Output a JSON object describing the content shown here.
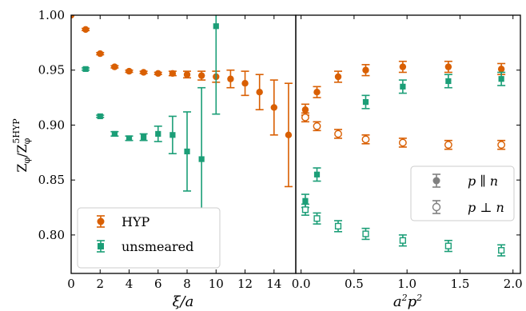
{
  "colors": {
    "hyp": "#d95f02",
    "unsmeared": "#1b9e77",
    "legend_gray": "#808080"
  },
  "chart_data": [
    {
      "type": "scatter",
      "panel": "left",
      "xlabel": "ξ/a",
      "ylabel": "Z_φ/Z_φ^5HYP",
      "xlim": [
        0,
        15.5
      ],
      "ylim": [
        0.765,
        1.0
      ],
      "x_ticks": [
        "0",
        "2",
        "4",
        "6",
        "8",
        "10",
        "12",
        "14"
      ],
      "y_ticks": [
        "0.80",
        "0.85",
        "0.90",
        "0.95",
        "1.00"
      ],
      "legend_position": "lower-left",
      "series": [
        {
          "name": "HYP",
          "marker": "circle",
          "color": "#d95f02",
          "points": [
            {
              "x": 0,
              "y": 1.0,
              "err": 0.0
            },
            {
              "x": 1,
              "y": 0.987,
              "err": 0.001
            },
            {
              "x": 2,
              "y": 0.965,
              "err": 0.001
            },
            {
              "x": 3,
              "y": 0.953,
              "err": 0.001
            },
            {
              "x": 4,
              "y": 0.949,
              "err": 0.001
            },
            {
              "x": 5,
              "y": 0.948,
              "err": 0.001
            },
            {
              "x": 6,
              "y": 0.947,
              "err": 0.001
            },
            {
              "x": 7,
              "y": 0.947,
              "err": 0.002
            },
            {
              "x": 8,
              "y": 0.946,
              "err": 0.003
            },
            {
              "x": 9,
              "y": 0.945,
              "err": 0.004
            },
            {
              "x": 10,
              "y": 0.944,
              "err": 0.005
            },
            {
              "x": 11,
              "y": 0.942,
              "err": 0.008
            },
            {
              "x": 12,
              "y": 0.938,
              "err": 0.011
            },
            {
              "x": 13,
              "y": 0.93,
              "err": 0.016
            },
            {
              "x": 14,
              "y": 0.916,
              "err": 0.025
            },
            {
              "x": 15,
              "y": 0.891,
              "err": 0.047
            }
          ]
        },
        {
          "name": "unsmeared",
          "marker": "square",
          "color": "#1b9e77",
          "points": [
            {
              "x": 1,
              "y": 0.951,
              "err": 0.001
            },
            {
              "x": 2,
              "y": 0.908,
              "err": 0.001
            },
            {
              "x": 3,
              "y": 0.892,
              "err": 0.002
            },
            {
              "x": 4,
              "y": 0.888,
              "err": 0.002
            },
            {
              "x": 5,
              "y": 0.889,
              "err": 0.003
            },
            {
              "x": 6,
              "y": 0.892,
              "err": 0.007
            },
            {
              "x": 7,
              "y": 0.891,
              "err": 0.017
            },
            {
              "x": 8,
              "y": 0.876,
              "err": 0.036
            },
            {
              "x": 9,
              "y": 0.869,
              "err": 0.065
            },
            {
              "x": 10,
              "y": 0.99,
              "err": 0.08
            }
          ]
        }
      ]
    },
    {
      "type": "scatter",
      "panel": "right",
      "xlabel": "a²p²",
      "xlim": [
        -0.05,
        2.07
      ],
      "ylim": [
        0.765,
        1.0
      ],
      "x_ticks": [
        "0.0",
        "0.5",
        "1.0",
        "1.5",
        "2.0"
      ],
      "legend_position": "center-right",
      "legend": [
        {
          "label": "p ∥ n",
          "marker": "filled-circle"
        },
        {
          "label": "p ⊥ n",
          "marker": "open-circle"
        }
      ],
      "series": [
        {
          "marker": "filled-circle",
          "color": "#d95f02",
          "points": [
            {
              "x": 0.04,
              "y": 0.914,
              "err": 0.005
            },
            {
              "x": 0.15,
              "y": 0.93,
              "err": 0.005
            },
            {
              "x": 0.35,
              "y": 0.944,
              "err": 0.005
            },
            {
              "x": 0.61,
              "y": 0.95,
              "err": 0.005
            },
            {
              "x": 0.96,
              "y": 0.953,
              "err": 0.005
            },
            {
              "x": 1.39,
              "y": 0.953,
              "err": 0.005
            },
            {
              "x": 1.89,
              "y": 0.951,
              "err": 0.005
            }
          ]
        },
        {
          "marker": "open-circle",
          "color": "#d95f02",
          "points": [
            {
              "x": 0.04,
              "y": 0.907,
              "err": 0.004
            },
            {
              "x": 0.15,
              "y": 0.899,
              "err": 0.004
            },
            {
              "x": 0.35,
              "y": 0.892,
              "err": 0.004
            },
            {
              "x": 0.61,
              "y": 0.887,
              "err": 0.004
            },
            {
              "x": 0.96,
              "y": 0.884,
              "err": 0.004
            },
            {
              "x": 1.39,
              "y": 0.882,
              "err": 0.004
            },
            {
              "x": 1.89,
              "y": 0.882,
              "err": 0.004
            }
          ]
        },
        {
          "marker": "filled-square",
          "color": "#1b9e77",
          "points": [
            {
              "x": 0.04,
              "y": 0.831,
              "err": 0.006
            },
            {
              "x": 0.15,
              "y": 0.855,
              "err": 0.006
            },
            {
              "x": 0.61,
              "y": 0.921,
              "err": 0.006
            },
            {
              "x": 0.96,
              "y": 0.935,
              "err": 0.006
            },
            {
              "x": 1.39,
              "y": 0.94,
              "err": 0.006
            },
            {
              "x": 1.89,
              "y": 0.942,
              "err": 0.006
            }
          ]
        },
        {
          "marker": "open-square",
          "color": "#1b9e77",
          "points": [
            {
              "x": 0.04,
              "y": 0.823,
              "err": 0.005
            },
            {
              "x": 0.15,
              "y": 0.815,
              "err": 0.005
            },
            {
              "x": 0.35,
              "y": 0.808,
              "err": 0.005
            },
            {
              "x": 0.61,
              "y": 0.801,
              "err": 0.005
            },
            {
              "x": 0.96,
              "y": 0.795,
              "err": 0.005
            },
            {
              "x": 1.39,
              "y": 0.79,
              "err": 0.005
            },
            {
              "x": 1.89,
              "y": 0.786,
              "err": 0.005
            }
          ]
        }
      ]
    }
  ]
}
